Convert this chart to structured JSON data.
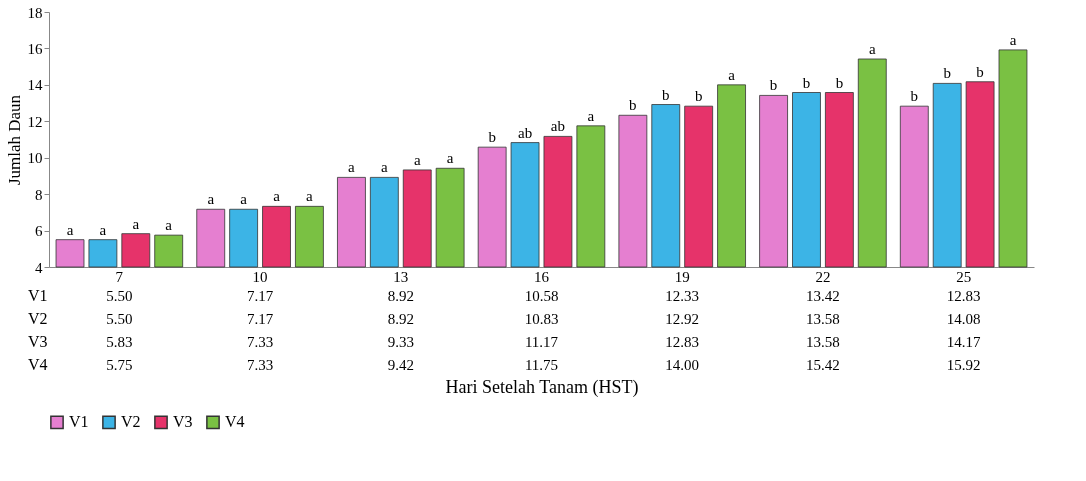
{
  "chart_data": {
    "type": "bar",
    "ylabel": "Jumlah Daun",
    "categories": [
      "7",
      "10",
      "13",
      "16",
      "19",
      "22",
      "25"
    ],
    "series": [
      {
        "name": "V1",
        "color": "#e57fd0",
        "values": [
          5.5,
          7.17,
          8.92,
          10.58,
          12.33,
          13.42,
          12.83
        ],
        "value_labels": [
          "5.50",
          "7.17",
          "8.92",
          "10.58",
          "12.33",
          "13.42",
          "12.83"
        ]
      },
      {
        "name": "V2",
        "color": "#3cb4e6",
        "values": [
          5.5,
          7.17,
          8.92,
          10.83,
          12.92,
          13.58,
          14.08
        ],
        "value_labels": [
          "5.50",
          "7.17",
          "8.92",
          "10.83",
          "12.92",
          "13.58",
          "14.08"
        ]
      },
      {
        "name": "V3",
        "color": "#e6336a",
        "values": [
          5.83,
          7.33,
          9.33,
          11.17,
          12.83,
          13.58,
          14.17
        ],
        "value_labels": [
          "5.83",
          "7.33",
          "9.33",
          "11.17",
          "12.83",
          "13.58",
          "14.17"
        ]
      },
      {
        "name": "V4",
        "color": "#7ac143",
        "values": [
          5.75,
          7.33,
          9.42,
          11.75,
          14.0,
          15.42,
          15.92
        ],
        "value_labels": [
          "5.75",
          "7.33",
          "9.42",
          "11.75",
          "14.00",
          "15.42",
          "15.92"
        ]
      }
    ],
    "annotations": [
      "a",
      "a",
      "a",
      "a",
      "a",
      "a",
      "a",
      "a",
      "a",
      "a",
      "a",
      "a",
      "b",
      "ab",
      "ab",
      "a",
      "b",
      "b",
      "b",
      "a",
      "b",
      "b",
      "b",
      "a",
      "b",
      "b",
      "b",
      "a",
      "Hari Setelah Tanam (HST)"
    ],
    "ylim": [
      4,
      18
    ],
    "yticks": [
      4,
      6,
      8,
      10,
      12,
      14,
      16,
      18
    ],
    "grid": false,
    "legend": "bottom"
  }
}
